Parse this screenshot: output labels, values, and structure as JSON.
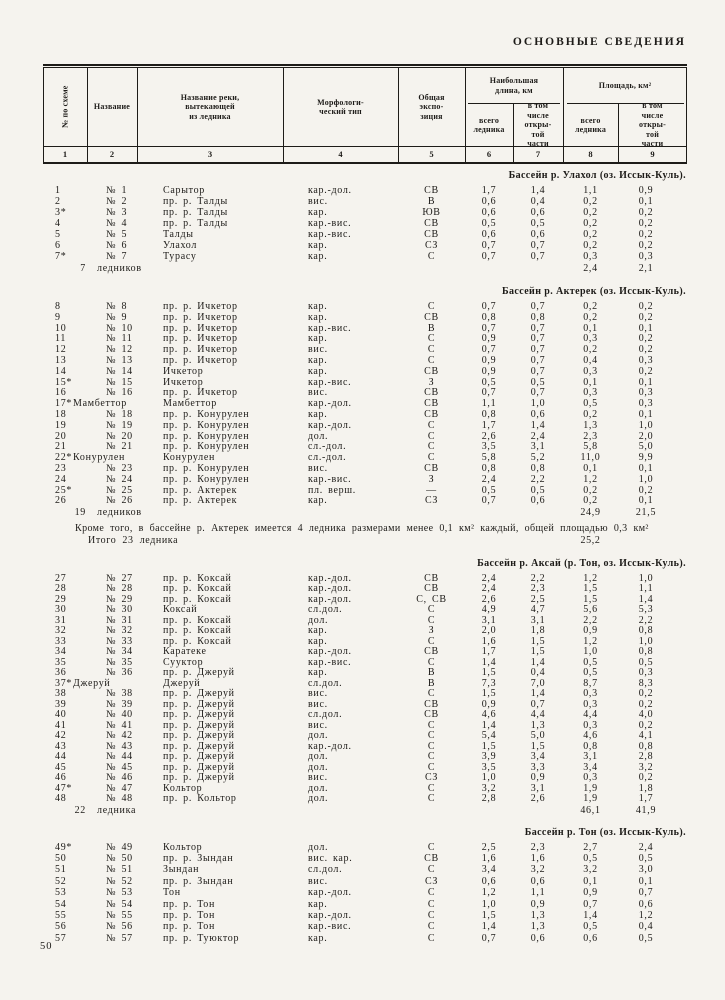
{
  "page_title": "ОСНОВНЫЕ СВЕДЕНИЯ",
  "page_number": "50",
  "table": {
    "header": {
      "col_no": "№ по схеме",
      "col_name": "Название",
      "col_river": "Название реки,\nвытекающей\nиз ледника",
      "col_morph": "Морфологи-\nческий тип",
      "col_expo": "Общая\nэкспо-\nзиция",
      "span_length": "Наибольшая\nдлина, км",
      "span_area": "Площадь, км²",
      "col_total_glacier": "всего\nледника",
      "col_open_part": "в том\nчисле\nоткры-\nтой\nчасти",
      "col_numbers": [
        "1",
        "2",
        "3",
        "4",
        "5",
        "6",
        "7",
        "8",
        "9"
      ]
    },
    "sections": [
      {
        "title": "Бассейн р. Улахол (оз. Иссык-Куль).",
        "rows": [
          [
            "1",
            "№ 1",
            "Сарытор",
            "кар.-дол.",
            "СВ",
            "1,7",
            "1,4",
            "1,1",
            "0,9"
          ],
          [
            "2",
            "№ 2",
            "пр. р. Талды",
            "вис.",
            "В",
            "0,6",
            "0,4",
            "0,2",
            "0,1"
          ],
          [
            "3*",
            "№ 3",
            "пр. р. Талды",
            "кар.",
            "ЮВ",
            "0,6",
            "0,6",
            "0,2",
            "0,2"
          ],
          [
            "4",
            "№ 4",
            "пр. р. Талды",
            "кар.-вис.",
            "СВ",
            "0,5",
            "0,5",
            "0,2",
            "0,2"
          ],
          [
            "5",
            "№ 5",
            "Талды",
            "кар.-вис.",
            "СВ",
            "0,6",
            "0,6",
            "0,2",
            "0,2"
          ],
          [
            "6",
            "№ 6",
            "Улахол",
            "кар.",
            "СЗ",
            "0,7",
            "0,7",
            "0,2",
            "0,2"
          ],
          [
            "7*",
            "№ 7",
            "Турасу",
            "кар.",
            "С",
            "0,7",
            "0,7",
            "0,3",
            "0,3"
          ]
        ],
        "totals": {
          "count": "7",
          "label": "ледников",
          "area_total": "2,4",
          "area_open": "2,1"
        }
      },
      {
        "title": "Бассейн р. Актерек (оз. Иссык-Куль).",
        "rows": [
          [
            "8",
            "№ 8",
            "пр. р. Ичкетор",
            "кар.",
            "С",
            "0,7",
            "0,7",
            "0,2",
            "0,2"
          ],
          [
            "9",
            "№ 9",
            "пр. р. Ичкетор",
            "кар.",
            "СВ",
            "0,8",
            "0,8",
            "0,2",
            "0,2"
          ],
          [
            "10",
            "№ 10",
            "пр. р. Ичкетор",
            "кар.-вис.",
            "В",
            "0,7",
            "0,7",
            "0,1",
            "0,1"
          ],
          [
            "11",
            "№ 11",
            "пр. р. Ичкетор",
            "кар.",
            "С",
            "0,9",
            "0,7",
            "0,3",
            "0,2"
          ],
          [
            "12",
            "№ 12",
            "пр. р. Ичкетор",
            "вис.",
            "С",
            "0,7",
            "0,7",
            "0,2",
            "0,2"
          ],
          [
            "13",
            "№ 13",
            "пр. р. Ичкетор",
            "кар.",
            "С",
            "0,9",
            "0,7",
            "0,4",
            "0,3"
          ],
          [
            "14",
            "№ 14",
            "Ичкетор",
            "кар.",
            "СВ",
            "0,9",
            "0,7",
            "0,3",
            "0,2"
          ],
          [
            "15*",
            "№ 15",
            "Ичкетор",
            "кар.-вис.",
            "З",
            "0,5",
            "0,5",
            "0,1",
            "0,1"
          ],
          [
            "16",
            "№ 16",
            "пр. р. Ичкетор",
            "вис.",
            "СВ",
            "0,7",
            "0,7",
            "0,3",
            "0,3"
          ],
          [
            "17*",
            "Мамбеттор",
            "Мамбеттор",
            "кар.-дол.",
            "СВ",
            "1,1",
            "1,0",
            "0,5",
            "0,3"
          ],
          [
            "18",
            "№ 18",
            "пр. р. Конурулен",
            "кар.",
            "СВ",
            "0,8",
            "0,6",
            "0,2",
            "0,1"
          ],
          [
            "19",
            "№ 19",
            "пр. р. Конурулен",
            "кар.-дол.",
            "С",
            "1,7",
            "1,4",
            "1,3",
            "1,0"
          ],
          [
            "20",
            "№ 20",
            "пр. р. Конурулен",
            "дол.",
            "С",
            "2,6",
            "2,4",
            "2,3",
            "2,0"
          ],
          [
            "21",
            "№ 21",
            "пр. р. Конурулен",
            "сл.-дол.",
            "С",
            "3,5",
            "3,1",
            "5,8",
            "5,0"
          ],
          [
            "22*",
            "Конурулен",
            "Конурулен",
            "сл.-дол.",
            "С",
            "5,8",
            "5,2",
            "11,0",
            "9,9"
          ],
          [
            "23",
            "№ 23",
            "пр. р. Конурулен",
            "вис.",
            "СВ",
            "0,8",
            "0,8",
            "0,1",
            "0,1"
          ],
          [
            "24",
            "№ 24",
            "пр. р. Конурулен",
            "кар.-вис.",
            "З",
            "2,4",
            "2,2",
            "1,2",
            "1,0"
          ],
          [
            "25*",
            "№ 25",
            "пр. р. Актерек",
            "пл. верш.",
            "—",
            "0,5",
            "0,5",
            "0,2",
            "0,2"
          ],
          [
            "26",
            "№ 26",
            "пр. р. Актерек",
            "кар.",
            "СЗ",
            "0,7",
            "0,6",
            "0,2",
            "0,1"
          ]
        ],
        "totals": {
          "count": "19",
          "label": "ледников",
          "area_total": "24,9",
          "area_open": "21,5"
        },
        "note": "Кроме того, в бассейне р. Актерек имеется 4 ледника размерами менее 0,1 км² каждый, общей площадью 0,3 км²",
        "note_total_label": "Итого 23 ледника",
        "note_total_value": "25,2"
      },
      {
        "title": "Бассейн р. Аксай (р. Тон, оз. Иссык-Куль).",
        "rows": [
          [
            "27",
            "№ 27",
            "пр. р. Коксай",
            "кар.-дол.",
            "СВ",
            "2,4",
            "2,2",
            "1,2",
            "1,0"
          ],
          [
            "28",
            "№ 28",
            "пр. р. Коксай",
            "кар.-дол.",
            "СВ",
            "2,4",
            "2,3",
            "1,5",
            "1,1"
          ],
          [
            "29",
            "№ 29",
            "пр. р. Коксай",
            "кар.-дол.",
            "С, СВ",
            "2,6",
            "2,5",
            "1,5",
            "1,4"
          ],
          [
            "30",
            "№ 30",
            "Коксай",
            "сл.дол.",
            "С",
            "4,9",
            "4,7",
            "5,6",
            "5,3"
          ],
          [
            "31",
            "№ 31",
            "пр. р. Коксай",
            "дол.",
            "С",
            "3,1",
            "3,1",
            "2,2",
            "2,2"
          ],
          [
            "32",
            "№ 32",
            "пр. р. Коксай",
            "кар.",
            "З",
            "2,0",
            "1,8",
            "0,9",
            "0,8"
          ],
          [
            "33",
            "№ 33",
            "пр. р. Коксай",
            "кар.",
            "С",
            "1,6",
            "1,5",
            "1,2",
            "1,0"
          ],
          [
            "34",
            "№ 34",
            "Каратеке",
            "кар.-дол.",
            "СВ",
            "1,7",
            "1,5",
            "1,0",
            "0,8"
          ],
          [
            "35",
            "№ 35",
            "Сууктор",
            "кар.-вис.",
            "С",
            "1,4",
            "1,4",
            "0,5",
            "0,5"
          ],
          [
            "36",
            "№ 36",
            "пр. р. Джеруй",
            "кар.",
            "В",
            "1,5",
            "0,4",
            "0,5",
            "0,3"
          ],
          [
            "37*",
            "Джеруй",
            "Джеруй",
            "сл.дол.",
            "В",
            "7,3",
            "7,0",
            "8,7",
            "8,3"
          ],
          [
            "38",
            "№ 38",
            "пр. р. Джеруй",
            "вис.",
            "С",
            "1,5",
            "1,4",
            "0,3",
            "0,2"
          ],
          [
            "39",
            "№ 39",
            "пр. р. Джеруй",
            "вис.",
            "СВ",
            "0,9",
            "0,7",
            "0,3",
            "0,2"
          ],
          [
            "40",
            "№ 40",
            "пр. р. Джеруй",
            "сл.дол.",
            "СВ",
            "4,6",
            "4,4",
            "4,4",
            "4,0"
          ],
          [
            "41",
            "№ 41",
            "пр. р. Джеруй",
            "вис.",
            "С",
            "1,4",
            "1,3",
            "0,3",
            "0,2"
          ],
          [
            "42",
            "№ 42",
            "пр. р. Джеруй",
            "дол.",
            "С",
            "5,4",
            "5,0",
            "4,6",
            "4,1"
          ],
          [
            "43",
            "№ 43",
            "пр. р. Джеруй",
            "кар.-дол.",
            "С",
            "1,5",
            "1,5",
            "0,8",
            "0,8"
          ],
          [
            "44",
            "№ 44",
            "пр. р. Джеруй",
            "дол.",
            "С",
            "3,9",
            "3,4",
            "3,1",
            "2,8"
          ],
          [
            "45",
            "№ 45",
            "пр. р. Джеруй",
            "дол.",
            "С",
            "3,5",
            "3,3",
            "3,4",
            "3,2"
          ],
          [
            "46",
            "№ 46",
            "пр. р. Джеруй",
            "вис.",
            "СЗ",
            "1,0",
            "0,9",
            "0,3",
            "0,2"
          ],
          [
            "47*",
            "№ 47",
            "Кольтор",
            "дол.",
            "С",
            "3,2",
            "3,1",
            "1,9",
            "1,8"
          ],
          [
            "48",
            "№ 48",
            "пр. р. Кольтор",
            "дол.",
            "С",
            "2,8",
            "2,6",
            "1,9",
            "1,7"
          ]
        ],
        "totals": {
          "count": "22",
          "label": "ледника",
          "area_total": "46,1",
          "area_open": "41,9"
        }
      },
      {
        "title": "Бассейн р. Тон (оз. Иссык-Куль).",
        "rows": [
          [
            "49*",
            "№ 49",
            "Кольтор",
            "дол.",
            "С",
            "2,5",
            "2,3",
            "2,7",
            "2,4"
          ],
          [
            "50",
            "№ 50",
            "пр. р. Зындан",
            "вис. кар.",
            "СВ",
            "1,6",
            "1,6",
            "0,5",
            "0,5"
          ],
          [
            "51",
            "№ 51",
            "Зындан",
            "сл.дол.",
            "С",
            "3,4",
            "3,2",
            "3,2",
            "3,0"
          ],
          [
            "52",
            "№ 52",
            "пр. р. Зындан",
            "вис.",
            "СЗ",
            "0,6",
            "0,6",
            "0,1",
            "0,1"
          ],
          [
            "53",
            "№ 53",
            "Тон",
            "кар.-дол.",
            "С",
            "1,2",
            "1,1",
            "0,9",
            "0,7"
          ],
          [
            "54",
            "№ 54",
            "пр. р. Тон",
            "кар.",
            "С",
            "1,0",
            "0,9",
            "0,7",
            "0,6"
          ],
          [
            "55",
            "№ 55",
            "пр. р. Тон",
            "кар.-дол.",
            "С",
            "1,5",
            "1,3",
            "1,4",
            "1,2"
          ],
          [
            "56",
            "№ 56",
            "пр. р. Тон",
            "кар.-вис.",
            "С",
            "1,4",
            "1,3",
            "0,5",
            "0,4"
          ],
          [
            "57",
            "№ 57",
            "пр. р. Туюктор",
            "кар.",
            "С",
            "0,7",
            "0,6",
            "0,6",
            "0,5"
          ]
        ],
        "totals": null
      }
    ]
  }
}
